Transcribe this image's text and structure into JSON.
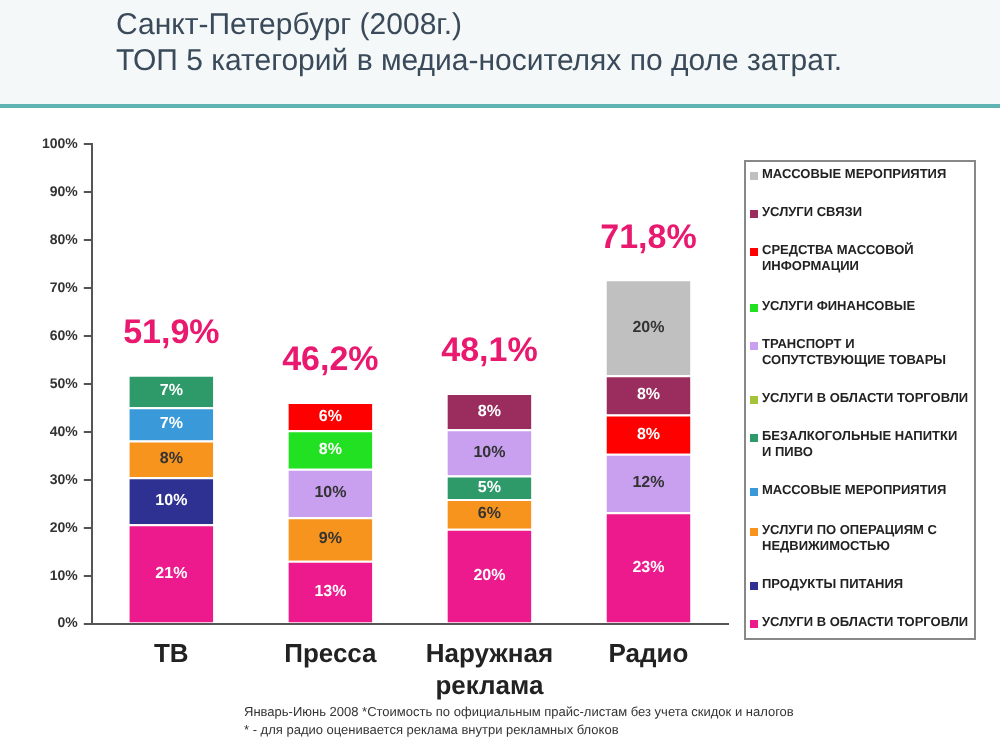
{
  "chart_data": {
    "type": "bar",
    "stacked": true,
    "title": "Санкт-Петербург (2008г.)",
    "subtitle": "ТОП 5 категорий в медиа-носителях по доле затрат.",
    "categories": [
      "ТВ",
      "Пресса",
      "Наружная реклама",
      "Радио"
    ],
    "series": [
      {
        "name": "УСЛУГИ В ОБЛАСТИ ТОРГОВЛИ",
        "color": "#ec1a8c",
        "values": [
          20.7,
          13.1,
          19.8,
          23.2
        ],
        "value_labels": [
          "21%",
          "13%",
          "20%",
          "23%"
        ]
      },
      {
        "name": "ПРОДУКТЫ ПИТАНИЯ",
        "color": "#2e3192",
        "values": [
          9.8,
          null,
          null,
          null
        ],
        "value_labels": [
          "10%",
          null,
          null,
          null
        ]
      },
      {
        "name": "УСЛУГИ ПО ОПЕРАЦИЯМ С НЕДВИЖИМОСТЬЮ",
        "color": "#f7941d",
        "values": [
          7.7,
          9.1,
          6.2,
          null
        ],
        "value_labels": [
          "8%",
          "9%",
          "6%",
          null
        ]
      },
      {
        "name": "МАССОВЫЕ МЕРОПРИЯТИЯ",
        "color": "#3a9ad9",
        "values": [
          6.9,
          null,
          null,
          null
        ],
        "value_labels": [
          "7%",
          null,
          null,
          null
        ]
      },
      {
        "name": "БЕЗАЛКОГОЛЬНЫЕ НАПИТКИ И ПИВО",
        "color": "#2e9a6a",
        "values": [
          6.8,
          null,
          4.9,
          null
        ],
        "value_labels": [
          "7%",
          null,
          "5%",
          null
        ]
      },
      {
        "name": "УСЛУГИ В ОБЛАСТИ ТОРГОВЛИ",
        "color": "#a3c43a",
        "values": [
          null,
          null,
          null,
          null
        ]
      },
      {
        "name": "ТРАНСПОРТ И СОПУТСТВУЮЩИЕ ТОВАРЫ",
        "color": "#c9a0f0",
        "values": [
          null,
          10.1,
          9.6,
          12.2
        ],
        "value_labels": [
          null,
          "10%",
          "10%",
          "12%"
        ]
      },
      {
        "name": "УСЛУГИ ФИНАНСОВЫЕ",
        "color": "#22e022",
        "values": [
          null,
          8.0,
          null,
          null
        ],
        "value_labels": [
          null,
          "8%",
          null,
          null
        ]
      },
      {
        "name": "СРЕДСТВА МАССОВОЙ ИНФОРМАЦИИ",
        "color": "#ff0000",
        "values": [
          null,
          5.9,
          null,
          8.2
        ],
        "value_labels": [
          null,
          "6%",
          null,
          "8%"
        ]
      },
      {
        "name": "УСЛУГИ СВЯЗИ",
        "color": "#9b2d5e",
        "values": [
          null,
          null,
          7.6,
          8.2
        ],
        "value_labels": [
          null,
          null,
          "8%",
          "8%"
        ]
      },
      {
        "name": "МАССОВЫЕ МЕРОПРИЯТИЯ",
        "color": "#c0c0c0",
        "values": [
          null,
          null,
          null,
          20
        ],
        "value_labels": [
          null,
          null,
          null,
          "20%"
        ]
      }
    ],
    "totals": [
      "51,9%",
      "46,2%",
      "48,1%",
      "71,8%"
    ],
    "ylim": [
      0,
      100
    ],
    "yticks": [
      {
        "value": 0,
        "label": "0%"
      },
      {
        "value": 10,
        "label": "10%"
      },
      {
        "value": 20,
        "label": "20%"
      },
      {
        "value": 30,
        "label": "30%"
      },
      {
        "value": 40,
        "label": "40%"
      },
      {
        "value": 50,
        "label": "50%"
      },
      {
        "value": 60,
        "label": "60%"
      },
      {
        "value": 70,
        "label": "70%"
      },
      {
        "value": 80,
        "label": "80%"
      },
      {
        "value": 90,
        "label": "90%"
      },
      {
        "value": 100,
        "label": "100%"
      }
    ],
    "grid": false,
    "legend": "right",
    "annotations": [
      "Январь-Июнь 2008 *Стоимость по официальным прайс-листам без учета скидок и налогов",
      "* - для радио оценивается реклама внутри рекламных блоков"
    ]
  }
}
